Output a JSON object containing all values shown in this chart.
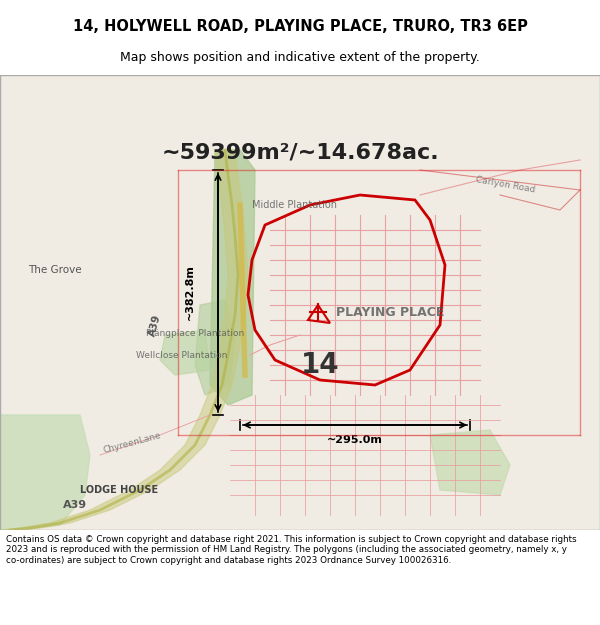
{
  "title_line1": "14, HOLYWELL ROAD, PLAYING PLACE, TRURO, TR3 6EP",
  "title_line2": "Map shows position and indicative extent of the property.",
  "area_text": "~59399m²/~14.678ac.",
  "label_14": "14",
  "label_playing_place": "PLAYING PLACE",
  "label_the_grove": "The Grove",
  "label_lodge_house": "LODGE HOUSE",
  "label_a39_bottom": "A39",
  "label_a39_mid": "A39",
  "label_middle_plantation": "Middle Plantation",
  "label_playing_plantation": "Plȧngplace Plantation",
  "label_wellclose": "Wellclose Plantation",
  "label_carlyon_road": "Carlyon Road",
  "label_chyreen": "ChyreenLane",
  "dim_vertical": "~382.8m",
  "dim_horizontal": "~295.0m",
  "bg_color": "#f5f0eb",
  "map_bg": "#f0ece4",
  "road_color": "#c8a876",
  "green_color": "#b8d4a8",
  "boundary_color": "#cc0000",
  "title_bg": "#ffffff",
  "footer_bg": "#ffffff",
  "footer_text": "Contains OS data © Crown copyright and database right 2021. This information is subject to Crown copyright and database rights 2023 and is reproduced with the permission of HM Land Registry. The polygons (including the associated geometry, namely x, y co-ordinates) are subject to Crown copyright and database rights 2023 Ordnance Survey 100026316.",
  "map_border_color": "#aaaaaa",
  "crosshair_color": "#cc0000",
  "dim_line_color": "#000000"
}
